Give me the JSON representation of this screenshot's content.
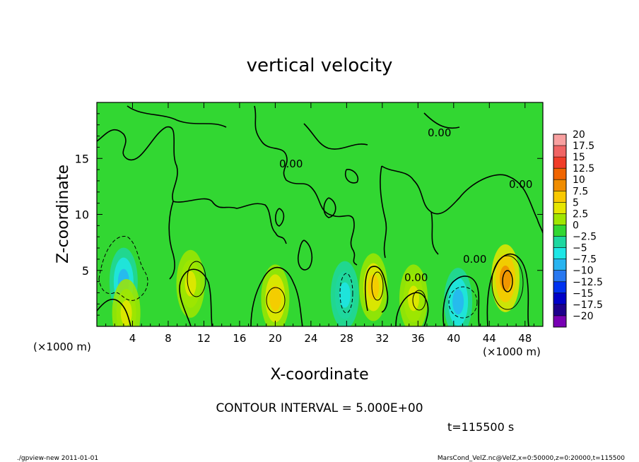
{
  "chart_data": {
    "type": "heatmap",
    "title": "vertical velocity",
    "xlabel": "X-coordinate",
    "ylabel": "Z-coordinate",
    "x_unit": "(×1000 m)",
    "z_unit": "(×1000 m)",
    "xlim": [
      0,
      50
    ],
    "ylim": [
      0,
      20
    ],
    "x_ticks": [
      "4",
      "8",
      "12",
      "16",
      "20",
      "24",
      "28",
      "32",
      "36",
      "40",
      "44",
      "48"
    ],
    "y_ticks": [
      "5",
      "10",
      "15"
    ],
    "colorbar_labels": [
      "20",
      "17.5",
      "15",
      "12.5",
      "10",
      "7.5",
      "5",
      "2.5",
      "0",
      "−2.5",
      "−5",
      "−7.5",
      "−10",
      "−12.5",
      "−15",
      "−17.5",
      "−20"
    ],
    "colorbar_colors": [
      "#f8a0a0",
      "#f06464",
      "#f03c28",
      "#f06400",
      "#f08c00",
      "#f8c800",
      "#e6e600",
      "#a0e600",
      "#32d732",
      "#1ed7a0",
      "#1ee6e6",
      "#28b4f0",
      "#2878f0",
      "#0032f0",
      "#0000c8",
      "#1e008c",
      "#7800b4"
    ],
    "contour_interval": "CONTOUR INTERVAL = 5.000E+00",
    "contour_labels": [
      "0.00",
      "0.00",
      "0.00",
      "0.00",
      "0.00"
    ],
    "time_label": "t=115500 s",
    "field_anomalies": [
      {
        "x": 3.0,
        "z": 4.0,
        "w": -7.5
      },
      {
        "x": 3.3,
        "z": 1.2,
        "w": 5.0
      },
      {
        "x": 10.5,
        "z": 3.8,
        "w": 5.0
      },
      {
        "x": 20.0,
        "z": 2.5,
        "w": 7.5
      },
      {
        "x": 27.8,
        "z": 2.8,
        "w": -5.0
      },
      {
        "x": 31.0,
        "z": 3.5,
        "w": 7.5
      },
      {
        "x": 35.5,
        "z": 2.5,
        "w": 5.0
      },
      {
        "x": 40.5,
        "z": 2.2,
        "w": -7.5
      },
      {
        "x": 45.8,
        "z": 4.3,
        "w": 10.0
      }
    ]
  },
  "footer": {
    "left": "./gpview-new  2011-01-01",
    "right": "MarsCond_VelZ.nc@VelZ,x=0:50000,z=0:20000,t=115500"
  }
}
